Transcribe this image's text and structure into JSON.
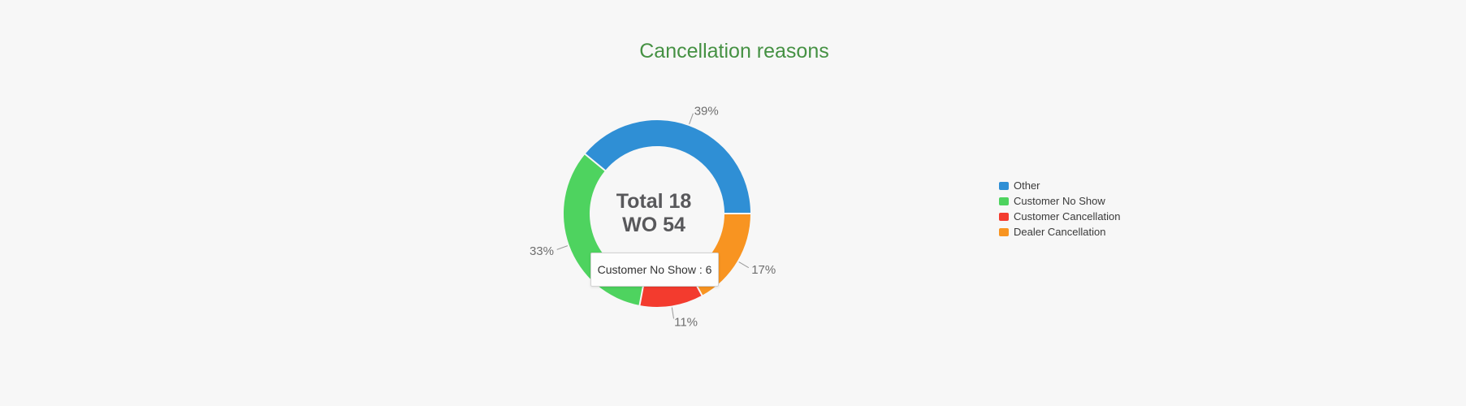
{
  "chart": {
    "title": "Cancellation reasons",
    "title_color": "#459143",
    "center": {
      "line1": "Total 18",
      "line2": "WO 54"
    },
    "tooltip": {
      "text": "Customer No Show : 6"
    }
  },
  "chart_data": {
    "type": "pie",
    "subtype": "donut",
    "title": "Cancellation reasons",
    "center_text": [
      "Total 18",
      "WO 54"
    ],
    "total": 18,
    "start_angle_deg": -50.4,
    "draw_order": "clockwise",
    "slices": [
      {
        "label": "Other",
        "value": 7,
        "pct": 39,
        "pct_label": "39%",
        "color": "#2f8fd5"
      },
      {
        "label": "Dealer Cancellation",
        "value": 3,
        "pct": 17,
        "pct_label": "17%",
        "color": "#f89421"
      },
      {
        "label": "Customer Cancellation",
        "value": 2,
        "pct": 11,
        "pct_label": "11%",
        "color": "#f33b2e"
      },
      {
        "label": "Customer No Show",
        "value": 6,
        "pct": 33,
        "pct_label": "33%",
        "color": "#4ed35f"
      }
    ],
    "legend_order": [
      "Other",
      "Customer No Show",
      "Customer Cancellation",
      "Dealer Cancellation"
    ],
    "legend_position": "right",
    "tooltip_text": "Customer No Show : 6",
    "label_color": "#6e6e6e",
    "leader_line_color": "#999999"
  }
}
